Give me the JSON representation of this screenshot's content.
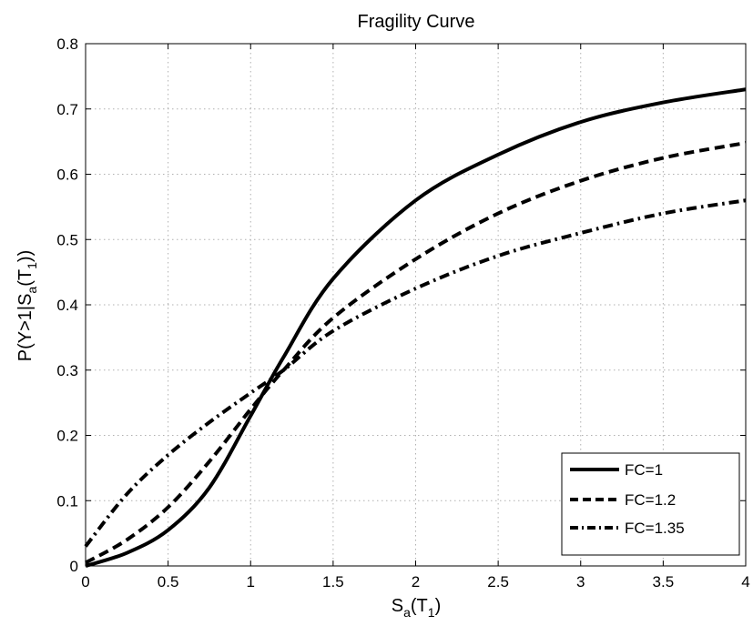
{
  "chart_data": {
    "type": "line",
    "title": "Fragility Curve",
    "xlabel_main": "S",
    "xlabel_sub": "a",
    "xlabel_mid": "(T",
    "xlabel_sub2": "1",
    "xlabel_end": ")",
    "ylabel_main": "P(Y>1|S",
    "ylabel_sub": "a",
    "ylabel_mid": "(T",
    "ylabel_sub2": "1",
    "ylabel_end": "))",
    "xlim": [
      0,
      4
    ],
    "ylim": [
      0,
      0.8
    ],
    "xticks": [
      0,
      0.5,
      1,
      1.5,
      2,
      2.5,
      3,
      3.5,
      4
    ],
    "xtick_labels": [
      "0",
      "0.5",
      "1",
      "1.5",
      "2",
      "2.5",
      "3",
      "3.5",
      "4"
    ],
    "yticks": [
      0,
      0.1,
      0.2,
      0.3,
      0.4,
      0.5,
      0.6,
      0.7,
      0.8
    ],
    "ytick_labels": [
      "0",
      "0.1",
      "0.2",
      "0.3",
      "0.4",
      "0.5",
      "0.6",
      "0.7",
      "0.8"
    ],
    "grid": true,
    "legend_position": "bottom-right",
    "x": [
      0.0,
      0.25,
      0.5,
      0.75,
      1.0,
      1.2,
      1.5,
      2.0,
      2.5,
      3.0,
      3.5,
      4.0
    ],
    "series": [
      {
        "name": "FC=1",
        "style": "solid",
        "color": "#000000",
        "values": [
          0.0,
          0.02,
          0.055,
          0.12,
          0.23,
          0.32,
          0.44,
          0.56,
          0.63,
          0.68,
          0.71,
          0.73
        ]
      },
      {
        "name": "FC=1.2",
        "style": "dashed",
        "color": "#000000",
        "values": [
          0.005,
          0.04,
          0.09,
          0.16,
          0.24,
          0.3,
          0.38,
          0.47,
          0.54,
          0.59,
          0.625,
          0.648
        ]
      },
      {
        "name": "FC=1.35",
        "style": "dashdot",
        "color": "#000000",
        "values": [
          0.03,
          0.11,
          0.17,
          0.22,
          0.265,
          0.3,
          0.36,
          0.425,
          0.475,
          0.51,
          0.54,
          0.56
        ]
      }
    ]
  }
}
